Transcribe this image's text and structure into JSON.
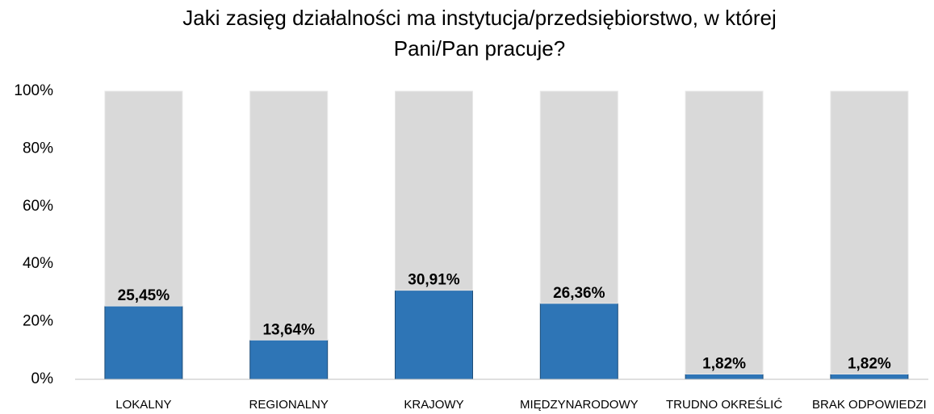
{
  "chart_data": {
    "type": "stacked_bar",
    "title": [
      "Jaki zasięg działalności ma instytucja/przedsiębiorstwo, w której",
      "Pani/Pan pracuje?"
    ],
    "categories": [
      "LOKALNY",
      "REGIONALNY",
      "KRAJOWY",
      "MIĘDZYNARODOWY",
      "TRUDNO OKREŚLIĆ",
      "BRAK ODPOWIEDZI"
    ],
    "series": [
      {
        "color": "#2e75b6",
        "values": [
          25.45,
          13.64,
          30.91,
          26.36,
          1.82,
          1.82
        ],
        "value_labels": [
          "25,45%",
          "13,64%",
          "30,91%",
          "26,36%",
          "1,82%",
          "1,82%"
        ]
      },
      {
        "color": "#d9d9d9",
        "values": [
          74.55,
          86.36,
          69.09,
          73.64,
          98.18,
          98.18
        ]
      }
    ],
    "ylim": [
      0,
      100
    ],
    "yticks": [
      {
        "value": 0,
        "label": "0%"
      },
      {
        "value": 20,
        "label": "20%"
      },
      {
        "value": 40,
        "label": "40%"
      },
      {
        "value": 60,
        "label": "60%"
      },
      {
        "value": 80,
        "label": "80%"
      },
      {
        "value": 100,
        "label": "100%"
      }
    ]
  }
}
